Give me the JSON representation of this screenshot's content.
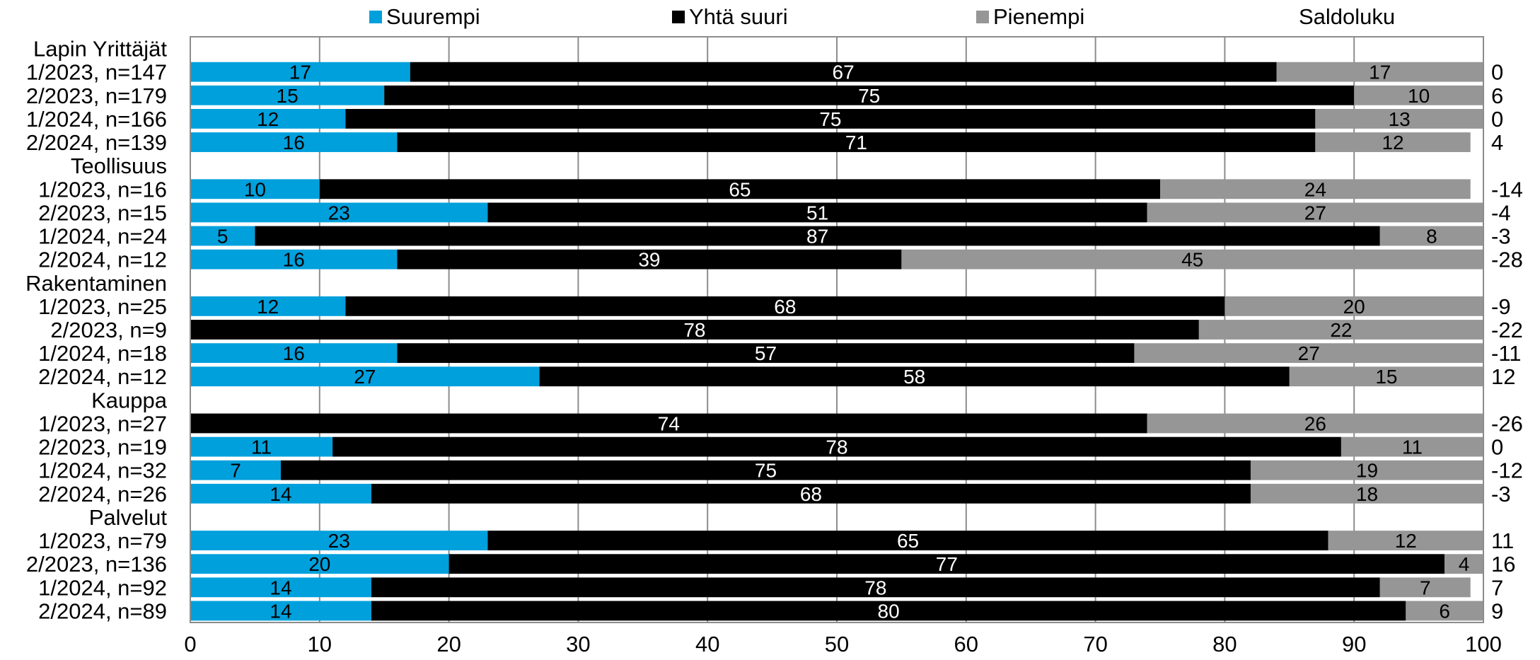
{
  "chart_data": {
    "type": "bar",
    "stacked": true,
    "orientation": "horizontal",
    "title": "",
    "xlim": [
      0,
      100
    ],
    "x_ticks": [
      0,
      10,
      20,
      30,
      40,
      50,
      60,
      70,
      80,
      90,
      100
    ],
    "grid": true,
    "legend_position": "top",
    "balance_label": "Saldoluku",
    "series": [
      {
        "name": "Suurempi",
        "color": "#00a0dc",
        "label_color": "#000000"
      },
      {
        "name": "Yhtä suuri",
        "color": "#000000",
        "label_color": "#ffffff"
      },
      {
        "name": "Pienempi",
        "color": "#969696",
        "label_color": "#000000"
      }
    ],
    "rows": [
      {
        "label": "Lapin Yrittäjät",
        "group": true
      },
      {
        "label": "1/2023, n=147",
        "values": [
          17,
          67,
          17
        ],
        "saldo": "0"
      },
      {
        "label": "2/2023, n=179",
        "values": [
          15,
          75,
          10
        ],
        "saldo": "6"
      },
      {
        "label": "1/2024, n=166",
        "values": [
          12,
          75,
          13
        ],
        "saldo": "0"
      },
      {
        "label": "2/2024, n=139",
        "values": [
          16,
          71,
          12
        ],
        "saldo": "4"
      },
      {
        "label": "Teollisuus",
        "group": true
      },
      {
        "label": "1/2023, n=16",
        "values": [
          10,
          65,
          24
        ],
        "saldo": "-14"
      },
      {
        "label": "2/2023, n=15",
        "values": [
          23,
          51,
          27
        ],
        "saldo": "-4"
      },
      {
        "label": "1/2024, n=24",
        "values": [
          5,
          87,
          8
        ],
        "saldo": "-3"
      },
      {
        "label": "2/2024, n=12",
        "values": [
          16,
          39,
          45
        ],
        "saldo": "-28"
      },
      {
        "label": "Rakentaminen",
        "group": true
      },
      {
        "label": "1/2023, n=25",
        "values": [
          12,
          68,
          20
        ],
        "saldo": "-9"
      },
      {
        "label": "2/2023, n=9",
        "values": [
          0,
          78,
          22
        ],
        "saldo": "-22"
      },
      {
        "label": "1/2024, n=18",
        "values": [
          16,
          57,
          27
        ],
        "saldo": "-11"
      },
      {
        "label": "2/2024, n=12",
        "values": [
          27,
          58,
          15
        ],
        "saldo": "12"
      },
      {
        "label": "Kauppa",
        "group": true
      },
      {
        "label": "1/2023, n=27",
        "values": [
          0,
          74,
          26
        ],
        "saldo": "-26"
      },
      {
        "label": "2/2023, n=19",
        "values": [
          11,
          78,
          11
        ],
        "saldo": "0"
      },
      {
        "label": "1/2024, n=32",
        "values": [
          7,
          75,
          19
        ],
        "saldo": "-12"
      },
      {
        "label": "2/2024, n=26",
        "values": [
          14,
          68,
          18
        ],
        "saldo": "-3"
      },
      {
        "label": "Palvelut",
        "group": true
      },
      {
        "label": "1/2023, n=79",
        "values": [
          23,
          65,
          12
        ],
        "saldo": "11"
      },
      {
        "label": "2/2023, n=136",
        "values": [
          20,
          77,
          4
        ],
        "saldo": "16"
      },
      {
        "label": "1/2024, n=92",
        "values": [
          14,
          78,
          7
        ],
        "saldo": "7"
      },
      {
        "label": "2/2024, n=89",
        "values": [
          14,
          80,
          6
        ],
        "saldo": "9"
      }
    ]
  }
}
